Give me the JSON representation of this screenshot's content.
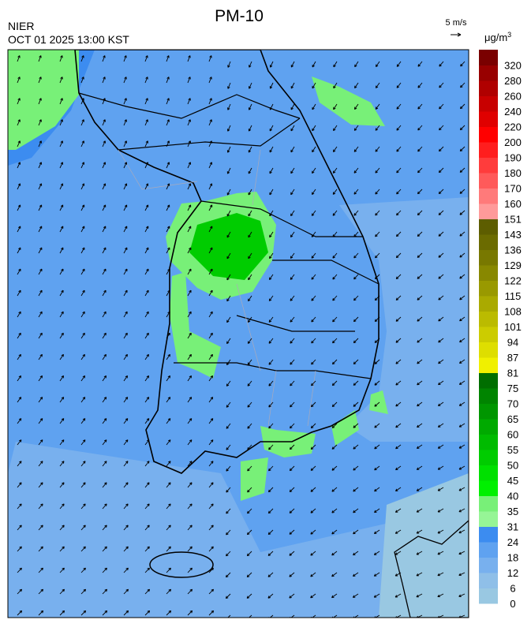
{
  "header": {
    "title": "PM-10",
    "agency": "NIER",
    "datetime": "OCT 01 2025 13:00 KST"
  },
  "wind_key": {
    "label": "5 m/s"
  },
  "legend": {
    "unit": {
      "base": "μg/m",
      "sup": "3"
    },
    "levels": [
      0,
      6,
      12,
      18,
      24,
      31,
      35,
      40,
      45,
      50,
      55,
      60,
      65,
      70,
      75,
      81,
      87,
      94,
      101,
      108,
      115,
      122,
      129,
      136,
      143,
      151,
      160,
      170,
      180,
      190,
      200,
      220,
      240,
      260,
      280,
      320
    ],
    "colors": [
      "#99c8e2",
      "#8fbfe8",
      "#78b0ee",
      "#5fa2f0",
      "#3c8cf0",
      "#96f596",
      "#78f078",
      "#00f000",
      "#00e000",
      "#00cc00",
      "#00bb00",
      "#00aa00",
      "#009600",
      "#008400",
      "#006e00",
      "#f0f000",
      "#dede00",
      "#cccc00",
      "#bbbb00",
      "#aaaa00",
      "#999900",
      "#888800",
      "#787800",
      "#6b6b00",
      "#5d5d00",
      "#ff9a9a",
      "#ff7a7a",
      "#ff5a5a",
      "#ff3c3c",
      "#ff1e1e",
      "#ff0000",
      "#e00000",
      "#c80000",
      "#b00000",
      "#980000",
      "#7a0000"
    ]
  }
}
